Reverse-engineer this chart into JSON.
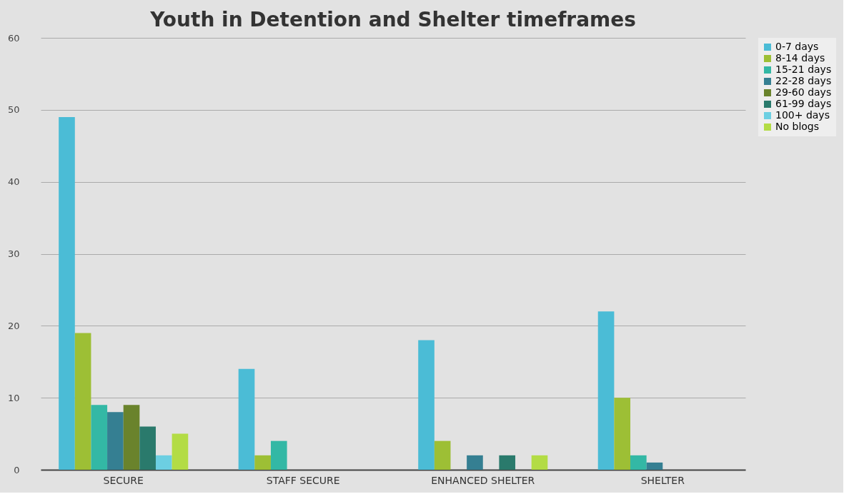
{
  "chart_data": {
    "type": "bar",
    "title": "Youth in Detention and Shelter timeframes",
    "categories": [
      "SECURE",
      "STAFF SECURE",
      "ENHANCED SHELTER",
      "SHELTER"
    ],
    "series": [
      {
        "name": "0-7 days",
        "color": "#4bbcd6",
        "values": [
          49,
          14,
          18,
          22
        ]
      },
      {
        "name": "8-14 days",
        "color": "#9dbf35",
        "values": [
          19,
          2,
          4,
          10
        ]
      },
      {
        "name": "15-21 days",
        "color": "#33b8a5",
        "values": [
          9,
          4,
          0,
          2
        ]
      },
      {
        "name": "22-28 days",
        "color": "#357f92",
        "values": [
          8,
          0,
          2,
          1
        ]
      },
      {
        "name": "29-60 days",
        "color": "#6a832c",
        "values": [
          9,
          0,
          0,
          0
        ]
      },
      {
        "name": "61-99 days",
        "color": "#2a7a6c",
        "values": [
          6,
          0,
          2,
          0
        ]
      },
      {
        "name": "100+ days",
        "color": "#6ccfe2",
        "values": [
          2,
          0,
          0,
          0
        ]
      },
      {
        "name": "No blogs",
        "color": "#b3dc45",
        "values": [
          5,
          0,
          2,
          0
        ]
      }
    ],
    "ylim": [
      0,
      60
    ],
    "yticks": [
      0,
      10,
      20,
      30,
      40,
      50,
      60
    ],
    "grid": "y",
    "legend": "right"
  }
}
